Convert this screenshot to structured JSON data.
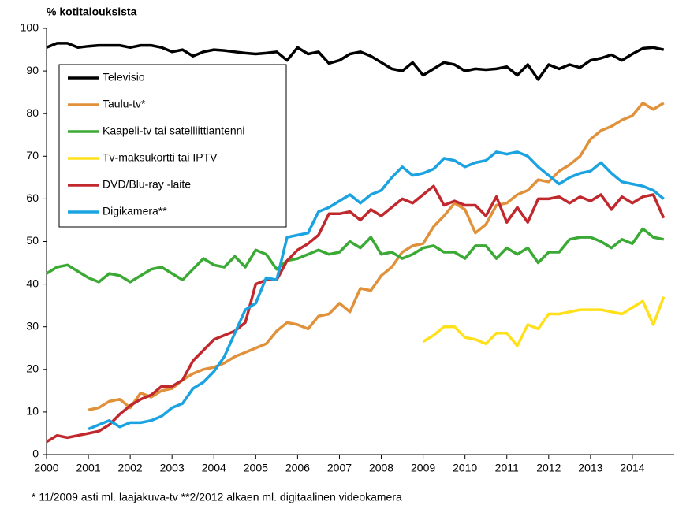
{
  "chart_data": {
    "type": "line",
    "title": "% kotitalouksista",
    "footnote": "* 11/2009 asti ml. laajakuva-tv  **2/2012 alkaen ml. digitaalinen videokamera",
    "x": [
      2000,
      2000.25,
      2000.5,
      2000.75,
      2001,
      2001.25,
      2001.5,
      2001.75,
      2002,
      2002.25,
      2002.5,
      2002.75,
      2003,
      2003.25,
      2003.5,
      2003.75,
      2004,
      2004.25,
      2004.5,
      2004.75,
      2005,
      2005.25,
      2005.5,
      2005.75,
      2006,
      2006.25,
      2006.5,
      2006.75,
      2007,
      2007.25,
      2007.5,
      2007.75,
      2008,
      2008.25,
      2008.5,
      2008.75,
      2009,
      2009.25,
      2009.5,
      2009.75,
      2010,
      2010.25,
      2010.5,
      2010.75,
      2011,
      2011.25,
      2011.5,
      2011.75,
      2012,
      2012.25,
      2012.5,
      2012.75,
      2013,
      2013.25,
      2013.5,
      2013.75,
      2014,
      2014.25,
      2014.5,
      2014.75
    ],
    "xlim": [
      2000,
      2015
    ],
    "xticks": [
      2000,
      2001,
      2002,
      2003,
      2004,
      2005,
      2006,
      2007,
      2008,
      2009,
      2010,
      2011,
      2012,
      2013,
      2014
    ],
    "ylim": [
      0,
      100
    ],
    "yticks": [
      0,
      10,
      20,
      30,
      40,
      50,
      60,
      70,
      80,
      90,
      100
    ],
    "legend": "upper left",
    "series": [
      {
        "name": "Televisio",
        "color": "#000000",
        "values": [
          95.5,
          96.5,
          96.5,
          95.5,
          95.8,
          96,
          96,
          96,
          95.5,
          96,
          96,
          95.5,
          94.5,
          95,
          93.5,
          94.5,
          95,
          94.8,
          94.5,
          94.2,
          94,
          94.2,
          94.5,
          92.5,
          95.5,
          94,
          94.5,
          91.8,
          92.5,
          94,
          94.5,
          93.5,
          92,
          90.5,
          90,
          92,
          89,
          90.5,
          92,
          91.5,
          90,
          90.5,
          90.3,
          90.5,
          91,
          89,
          91.5,
          88,
          91.5,
          90.5,
          91.5,
          90.8,
          92.5,
          93,
          93.8,
          92.5,
          94,
          95.3,
          95.5,
          95
        ]
      },
      {
        "name": "Taulu-tv*",
        "color": "#e0913a",
        "values": [
          null,
          null,
          null,
          null,
          10.5,
          11,
          12.5,
          13,
          11,
          14.5,
          13.5,
          15,
          15.5,
          17.5,
          19,
          20,
          20.5,
          21.5,
          23,
          24,
          25,
          26,
          29,
          31,
          30.5,
          29.5,
          32.5,
          33,
          35.5,
          33.5,
          39,
          38.5,
          42,
          44,
          47.5,
          49,
          49.5,
          53.5,
          56,
          59,
          57.5,
          52,
          54,
          58.5,
          59,
          61,
          62,
          64.5,
          64,
          66.5,
          68,
          70,
          74,
          76,
          77,
          78.5,
          79.5,
          82.5,
          81,
          82.5
        ]
      },
      {
        "name": "Kaapeli-tv tai satelliittiantenni",
        "color": "#3aaa35",
        "values": [
          42.5,
          44,
          44.5,
          43,
          41.5,
          40.5,
          42.5,
          42,
          40.5,
          42,
          43.5,
          44,
          42.5,
          41,
          43.5,
          46,
          44.5,
          44,
          46.5,
          44,
          48,
          47,
          43.5,
          45.5,
          46,
          47,
          48,
          47,
          47.5,
          50,
          48.5,
          51,
          47,
          47.5,
          46,
          47,
          48.5,
          49,
          47.5,
          47.5,
          46,
          49,
          49,
          46,
          48.5,
          47,
          48.5,
          45,
          47.5,
          47.5,
          50.5,
          51,
          51,
          50,
          48.5,
          50.5,
          49.5,
          53,
          51,
          50.5
        ]
      },
      {
        "name": "Tv-maksukortti tai IPTV",
        "color": "#ffe01a",
        "values": [
          null,
          null,
          null,
          null,
          null,
          null,
          null,
          null,
          null,
          null,
          null,
          null,
          null,
          null,
          null,
          null,
          null,
          null,
          null,
          null,
          null,
          null,
          null,
          null,
          null,
          null,
          null,
          null,
          null,
          null,
          null,
          null,
          null,
          null,
          null,
          null,
          26.5,
          28,
          30,
          30,
          27.5,
          27,
          26,
          28.5,
          28.5,
          25.5,
          30.5,
          29.5,
          33,
          33,
          33.5,
          34,
          34,
          34,
          33.5,
          33,
          34.5,
          36,
          30.5,
          37
        ]
      },
      {
        "name": "DVD/Blu-ray -laite",
        "color": "#c0282d",
        "values": [
          3,
          4.5,
          4,
          4.5,
          5,
          5.5,
          7,
          9.5,
          11.5,
          13,
          14,
          16,
          16,
          17.5,
          22,
          24.5,
          27,
          28,
          29,
          31,
          40,
          41,
          41,
          45.5,
          48,
          49.5,
          51.5,
          56.5,
          56.5,
          57,
          55,
          57.5,
          56,
          58,
          60,
          59,
          61,
          63,
          58.5,
          59.5,
          58.5,
          58.5,
          56,
          60.5,
          54.5,
          58,
          54.5,
          60,
          60,
          60.5,
          59,
          60.5,
          59.5,
          61,
          57.5,
          60.5,
          59,
          60.5,
          61,
          55.5
        ]
      },
      {
        "name": "Digikamera**",
        "color": "#1aa3e0",
        "values": [
          null,
          null,
          null,
          null,
          6,
          7,
          8,
          6.5,
          7.5,
          7.5,
          8,
          9,
          11,
          12,
          15.5,
          17,
          19.5,
          23,
          28.5,
          34,
          35.5,
          41.5,
          41,
          51,
          51.5,
          52,
          57,
          58,
          59.5,
          61,
          59,
          61,
          62,
          65,
          67.5,
          65.5,
          66,
          67,
          69.5,
          69,
          67.5,
          68.5,
          69,
          71,
          70.5,
          71,
          70,
          67.5,
          65.5,
          63.5,
          65,
          66,
          66.5,
          68.5,
          66,
          64,
          63.5,
          63,
          62,
          60
        ]
      }
    ]
  }
}
